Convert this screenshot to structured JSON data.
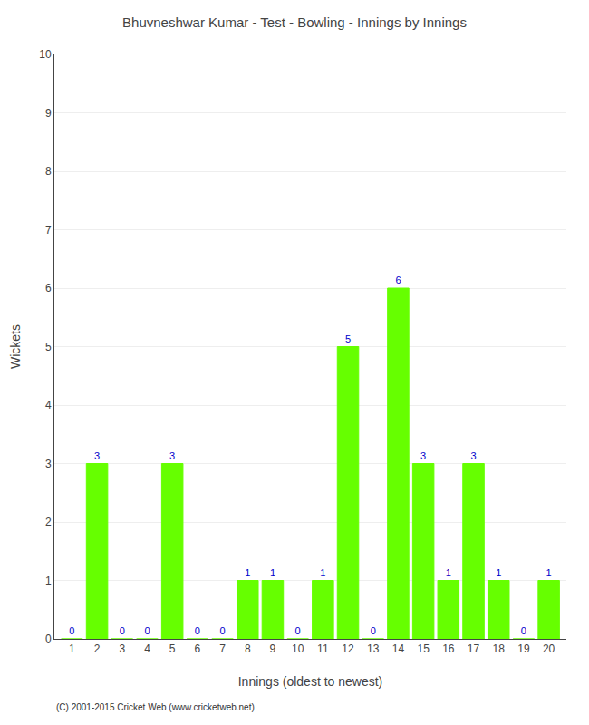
{
  "chart_data": {
    "type": "bar",
    "title": "Bhuvneshwar Kumar - Test - Bowling - Innings by Innings",
    "xlabel": "Innings (oldest to newest)",
    "ylabel": "Wickets",
    "x": [
      1,
      2,
      3,
      4,
      5,
      6,
      7,
      8,
      9,
      10,
      11,
      12,
      13,
      14,
      15,
      16,
      17,
      18,
      19,
      20
    ],
    "values": [
      0,
      3,
      0,
      0,
      3,
      0,
      0,
      1,
      1,
      0,
      1,
      5,
      0,
      6,
      3,
      1,
      3,
      1,
      0,
      1
    ],
    "color": "#66ff00",
    "data_labels": true,
    "xlim": [
      0.3,
      20.7
    ],
    "xticks": [
      1,
      2,
      3,
      4,
      5,
      6,
      7,
      8,
      9,
      10,
      11,
      12,
      13,
      14,
      15,
      16,
      17,
      18,
      19,
      20
    ],
    "ylim": [
      0,
      10
    ],
    "yticks": [
      0,
      1,
      2,
      3,
      4,
      5,
      6,
      7,
      8,
      9,
      10
    ],
    "grid": true,
    "annotations": [
      "(C) 2001-2015 Cricket Web (www.cricketweb.net)"
    ]
  }
}
